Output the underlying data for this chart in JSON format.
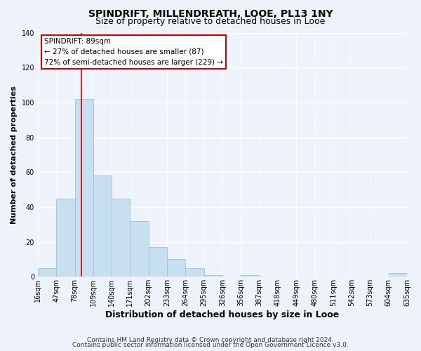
{
  "title": "SPINDRIFT, MILLENDREATH, LOOE, PL13 1NY",
  "subtitle": "Size of property relative to detached houses in Looe",
  "xlabel": "Distribution of detached houses by size in Looe",
  "ylabel": "Number of detached properties",
  "bar_values": [
    5,
    45,
    102,
    58,
    45,
    32,
    17,
    10,
    5,
    1,
    0,
    1,
    0,
    0,
    0,
    0,
    0,
    0,
    0,
    2
  ],
  "bin_labels": [
    "16sqm",
    "47sqm",
    "78sqm",
    "109sqm",
    "140sqm",
    "171sqm",
    "202sqm",
    "233sqm",
    "264sqm",
    "295sqm",
    "326sqm",
    "356sqm",
    "387sqm",
    "418sqm",
    "449sqm",
    "480sqm",
    "511sqm",
    "542sqm",
    "573sqm",
    "604sqm",
    "635sqm"
  ],
  "bar_color": "#c8dff0",
  "bar_edge_color": "#a0c0d8",
  "vline_color": "#cc0000",
  "annotation_title": "SPINDRIFT: 89sqm",
  "annotation_line1": "← 27% of detached houses are smaller (87)",
  "annotation_line2": "72% of semi-detached houses are larger (229) →",
  "annotation_box_color": "#ffffff",
  "annotation_box_edge": "#cc0000",
  "ylim": [
    0,
    140
  ],
  "yticks": [
    0,
    20,
    40,
    60,
    80,
    100,
    120,
    140
  ],
  "footnote1": "Contains HM Land Registry data © Crown copyright and database right 2024.",
  "footnote2": "Contains public sector information licensed under the Open Government Licence v3.0.",
  "bg_color": "#eef2fb",
  "grid_color": "#ffffff",
  "title_fontsize": 10,
  "subtitle_fontsize": 9,
  "xlabel_fontsize": 9,
  "ylabel_fontsize": 8,
  "tick_fontsize": 7,
  "footnote_fontsize": 6.5
}
